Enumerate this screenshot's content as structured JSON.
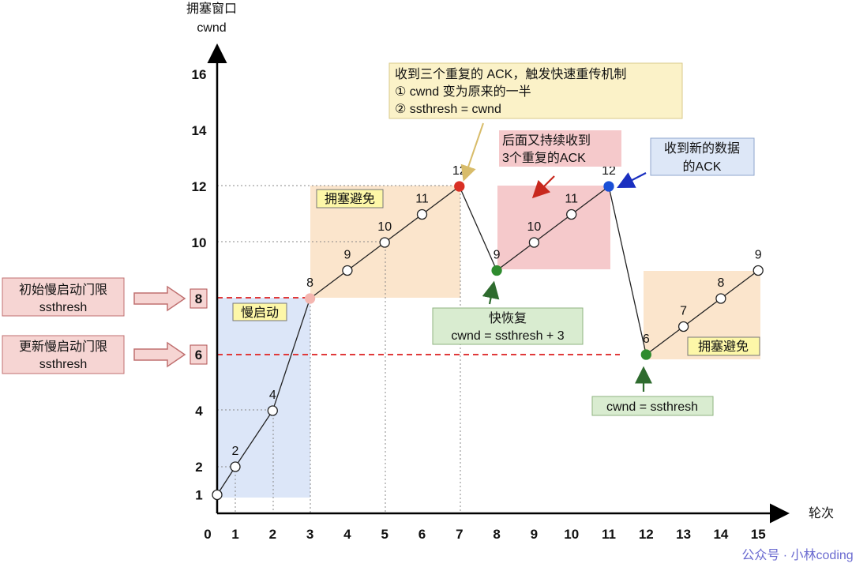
{
  "chart_data": {
    "type": "line",
    "y_axis_title": "拥塞窗口",
    "y_axis_unit": "cwnd",
    "x_axis_title": "轮次",
    "x_ticks": [
      "0",
      "1",
      "2",
      "3",
      "4",
      "5",
      "6",
      "7",
      "8",
      "9",
      "10",
      "11",
      "12",
      "13",
      "14",
      "15"
    ],
    "y_ticks": [
      "1",
      "2",
      "4",
      "6",
      "8",
      "10",
      "12",
      "14",
      "16"
    ],
    "x": [
      0,
      1,
      2,
      3,
      4,
      5,
      6,
      7,
      8,
      9,
      10,
      11,
      12,
      13,
      14,
      15
    ],
    "cwnd": [
      1,
      2,
      4,
      8,
      9,
      10,
      11,
      12,
      9,
      10,
      11,
      12,
      6,
      7,
      8,
      9
    ],
    "point_labels": [
      "",
      "2",
      "4",
      "8",
      "9",
      "10",
      "11",
      "12",
      "9",
      "10",
      "11",
      "12",
      "6",
      "7",
      "8",
      "9"
    ],
    "point_colors": [
      "#ffffff",
      "#ffffff",
      "#ffffff",
      "#f4b6b0",
      "#ffffff",
      "#ffffff",
      "#ffffff",
      "#d93025",
      "#2e8b2e",
      "#ffffff",
      "#ffffff",
      "#1a4fd6",
      "#2e8b2e",
      "#ffffff",
      "#ffffff",
      "#ffffff"
    ],
    "initial_ssthresh": 8,
    "updated_ssthresh": 6
  },
  "labels": {
    "initial_ssthresh_line1": "初始慢启动门限",
    "initial_ssthresh_line2": "ssthresh",
    "updated_ssthresh_line1": "更新慢启动门限",
    "updated_ssthresh_line2": "ssthresh",
    "ssthresh_8": "8",
    "ssthresh_6": "6",
    "slow_start": "慢启动",
    "congestion_avoidance_1": "拥塞避免",
    "congestion_avoidance_2": "拥塞避免",
    "fast_retransmit_line1": "收到三个重复的 ACK，触发快速重传机制",
    "fast_retransmit_line2": "① cwnd 变为原来的一半",
    "fast_retransmit_line3": "② ssthresh = cwnd",
    "more_dup_ack_line1": "后面又持续收到",
    "more_dup_ack_line2": "3个重复的ACK",
    "new_ack_line1": "收到新的数据",
    "new_ack_line2": "的ACK",
    "fast_recovery_line1": "快恢复",
    "fast_recovery_line2": "cwnd = ssthresh + 3",
    "cwnd_eq_ssthresh": "cwnd = ssthresh",
    "watermark": "公众号 · 小林coding"
  },
  "colors": {
    "slow_start_bg": "#dce6f8",
    "avoid_bg": "#fbe5cc",
    "pink_bg": "#f5c9cb",
    "yellow_label": "#fdf7a8",
    "threshold_line": "#e0393a",
    "green_box": "#d9ecd0",
    "blue_box": "#dde7f7"
  }
}
